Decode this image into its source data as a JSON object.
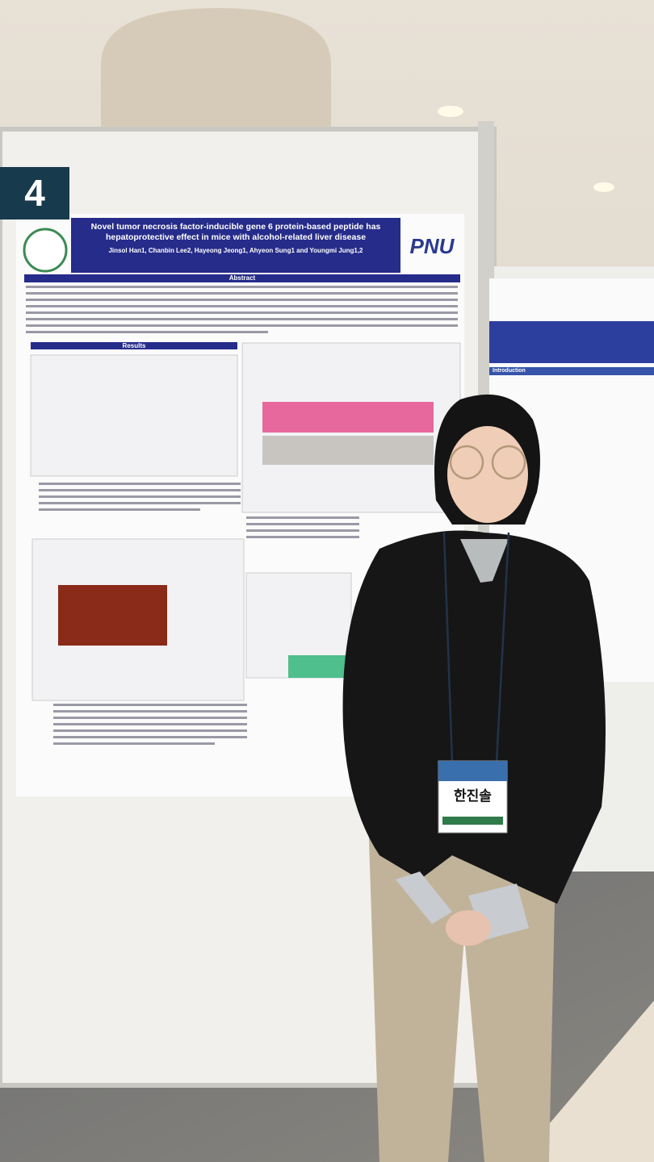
{
  "poster": {
    "number": "4",
    "logo": "PNU",
    "title": "Novel tumor necrosis factor-inducible gene 6 protein-based peptide has hepatoprotective effect in mice with alcohol-related liver disease",
    "authors": "Jinsol Han1, Chanbin Lee2, Hayeong Jeong1, Ahyeon Sung1 and Youngmi Jung1,2",
    "sections": [
      "Abstract",
      "Results"
    ]
  },
  "side_poster": {
    "sections": [
      "Introduction"
    ]
  },
  "badge": {
    "name": "한진솔"
  }
}
